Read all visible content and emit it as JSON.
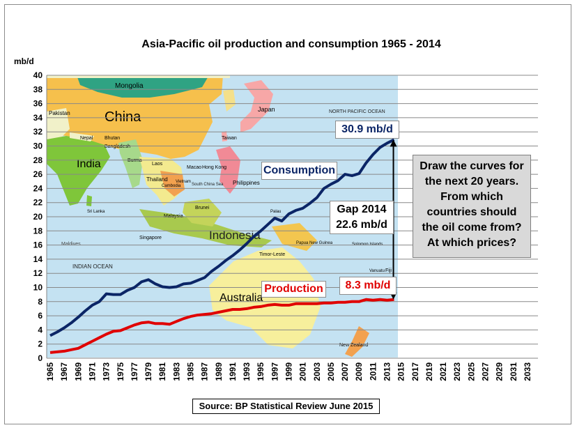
{
  "chart_data": {
    "type": "line",
    "title": "Asia-Pacific oil production and consumption 1965 - 2014",
    "ylabel": "mb/d",
    "xlabel": "",
    "ylim": [
      0,
      40
    ],
    "yticks": [
      0,
      2,
      4,
      6,
      8,
      10,
      12,
      14,
      16,
      18,
      20,
      22,
      24,
      26,
      28,
      30,
      32,
      34,
      36,
      38,
      40
    ],
    "xlim": [
      1965,
      2034
    ],
    "xticks": [
      1965,
      1967,
      1969,
      1971,
      1973,
      1975,
      1977,
      1979,
      1981,
      1983,
      1985,
      1987,
      1989,
      1991,
      1993,
      1995,
      1997,
      1999,
      2001,
      2003,
      2005,
      2007,
      2009,
      2011,
      2013,
      2015,
      2017,
      2019,
      2021,
      2023,
      2025,
      2027,
      2029,
      2031,
      2033
    ],
    "grid": "horizontal",
    "background": "map of Asia-Pacific region (1965-2014 span)",
    "x": [
      1965,
      1966,
      1967,
      1968,
      1969,
      1970,
      1971,
      1972,
      1973,
      1974,
      1975,
      1976,
      1977,
      1978,
      1979,
      1980,
      1981,
      1982,
      1983,
      1984,
      1985,
      1986,
      1987,
      1988,
      1989,
      1990,
      1991,
      1992,
      1993,
      1994,
      1995,
      1996,
      1997,
      1998,
      1999,
      2000,
      2001,
      2002,
      2003,
      2004,
      2005,
      2006,
      2007,
      2008,
      2009,
      2010,
      2011,
      2012,
      2013,
      2014
    ],
    "series": [
      {
        "name": "Consumption",
        "color": "#0b2566",
        "values": [
          3.2,
          3.7,
          4.3,
          5.0,
          5.8,
          6.7,
          7.5,
          8.0,
          9.1,
          9.0,
          9.0,
          9.6,
          10.0,
          10.8,
          11.1,
          10.5,
          10.1,
          10.0,
          10.1,
          10.5,
          10.6,
          11.0,
          11.4,
          12.3,
          13.0,
          13.8,
          14.5,
          15.3,
          16.2,
          17.2,
          18.0,
          18.9,
          19.8,
          19.4,
          20.4,
          20.9,
          21.2,
          21.9,
          22.7,
          24.0,
          24.6,
          25.1,
          26.0,
          25.8,
          26.1,
          27.6,
          28.8,
          29.8,
          30.4,
          30.9
        ]
      },
      {
        "name": "Production",
        "color": "#e00000",
        "values": [
          0.8,
          0.9,
          1.0,
          1.2,
          1.4,
          1.9,
          2.4,
          2.9,
          3.4,
          3.8,
          3.9,
          4.3,
          4.7,
          5.0,
          5.1,
          4.9,
          4.9,
          4.8,
          5.2,
          5.6,
          5.9,
          6.1,
          6.2,
          6.3,
          6.5,
          6.7,
          6.9,
          6.9,
          7.0,
          7.2,
          7.3,
          7.5,
          7.6,
          7.5,
          7.5,
          7.7,
          7.7,
          7.7,
          7.7,
          7.8,
          7.8,
          7.9,
          7.9,
          8.0,
          8.0,
          8.3,
          8.2,
          8.3,
          8.2,
          8.3
        ]
      }
    ],
    "annotations": {
      "consumption_label": "Consumption",
      "production_label": "Production",
      "consumption_2014": "30.9 mb/d",
      "production_2014": "8.3 mb/d",
      "gap_line1": "Gap 2014",
      "gap_line2": "22.6 mb/d",
      "question": [
        "Draw the curves for",
        "the next 20 years.",
        "From which",
        "countries should",
        "the oil come from?",
        "At which prices?"
      ]
    },
    "source": "Source: BP Statistical Review June 2015",
    "map_labels": [
      "Mongolia",
      "China",
      "Pakistan",
      "Nepal",
      "India",
      "Bhutan",
      "Bangladesh",
      "Burma",
      "Laos",
      "Thailand",
      "Cambodia",
      "Vietnam",
      "Macao",
      "Hong Kong",
      "Taiwan",
      "Japan",
      "NORTH PACIFIC OCEAN",
      "Philippines",
      "South China Sea",
      "Singapore",
      "Indonesia",
      "Brunei",
      "Malaysia",
      "Palau",
      "Papua New Guinea",
      "Timor-Leste",
      "Solomon Islands",
      "Vanuatu",
      "Fiji",
      "Maldives",
      "Sri Lanka",
      "INDIAN OCEAN",
      "Australia",
      "New Zealand"
    ]
  }
}
